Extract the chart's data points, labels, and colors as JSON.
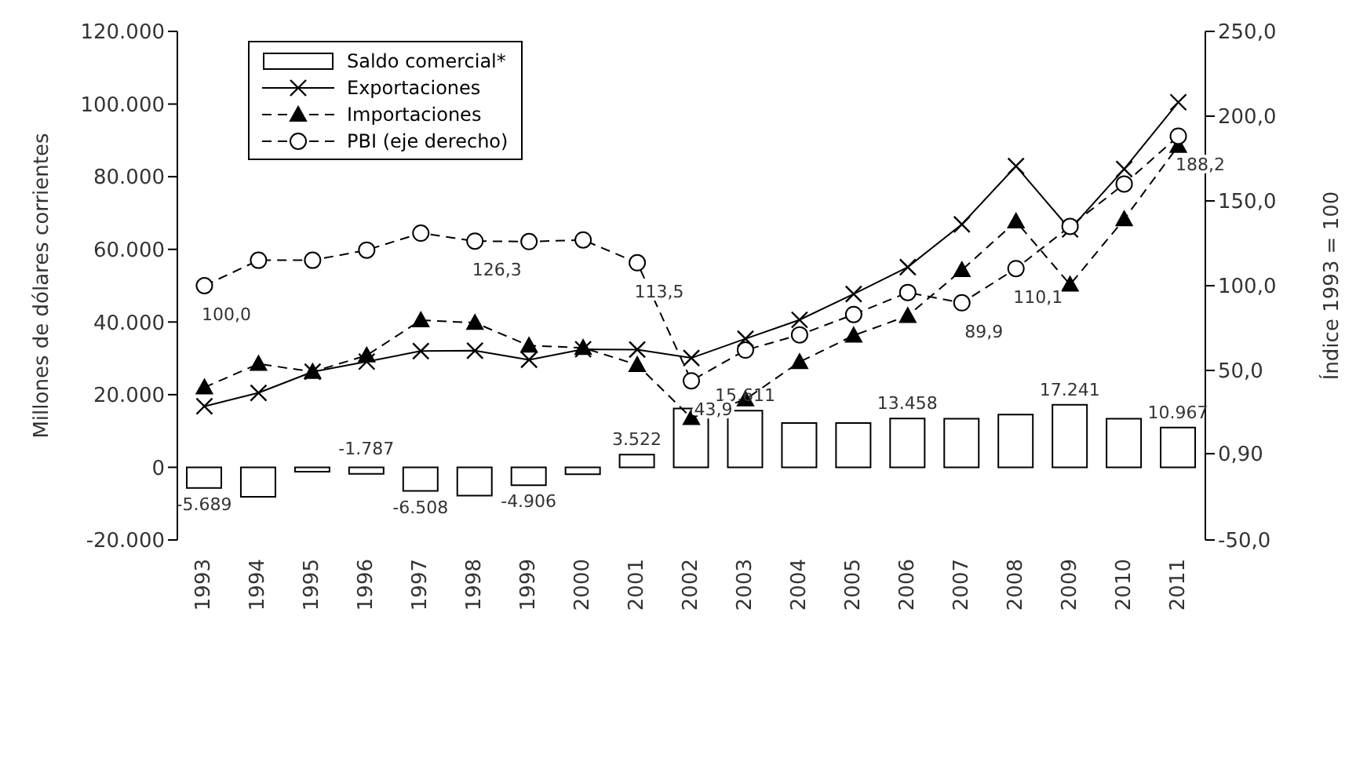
{
  "chart_data": {
    "type": "bar",
    "categories": [
      "1993",
      "1994",
      "1995",
      "1996",
      "1997",
      "1998",
      "1999",
      "2000",
      "2001",
      "2002",
      "2003",
      "2004",
      "2005",
      "2006",
      "2007",
      "2008",
      "2009",
      "2010",
      "2011"
    ],
    "ylabel": "Millones de dólares corrientes",
    "y2label": "Índice 1993 = 100",
    "ylim": [
      -20000,
      120000
    ],
    "yticks": [
      {
        "value": -20000,
        "label": "-20.000"
      },
      {
        "value": 0,
        "label": "0"
      },
      {
        "value": 20000,
        "label": "20.000"
      },
      {
        "value": 40000,
        "label": "40.000"
      },
      {
        "value": 60000,
        "label": "60.000"
      },
      {
        "value": 80000,
        "label": "80.000"
      },
      {
        "value": 100000,
        "label": "100.000"
      },
      {
        "value": 120000,
        "label": "120.000"
      }
    ],
    "y2lim": [
      -50,
      250
    ],
    "y2ticks": [
      {
        "value": -50,
        "label": "-50,0"
      },
      {
        "value": 0.9,
        "label": "0,90"
      },
      {
        "value": 50,
        "label": "50,0"
      },
      {
        "value": 100,
        "label": "100,0"
      },
      {
        "value": 150,
        "label": "150,0"
      },
      {
        "value": 200,
        "label": "200,0"
      },
      {
        "value": 250,
        "label": "250,0"
      }
    ],
    "legend": "top left",
    "series": [
      {
        "name": "Saldo comercial*",
        "color": "#ffffff",
        "values": [
          -5689,
          -8100,
          -1200,
          -1787,
          -6508,
          -7800,
          -4906,
          -1900,
          3522,
          16200,
          15611,
          12200,
          12200,
          13458,
          13400,
          14500,
          17241,
          13400,
          10967
        ],
        "value_labels": [
          "-5.689",
          null,
          null,
          "-1.787",
          "-6.508",
          null,
          "-4.906",
          null,
          "3.522",
          null,
          "15.611",
          null,
          null,
          "13.458",
          null,
          null,
          "17.241",
          null,
          "10.967"
        ]
      },
      {
        "name": "Exportaciones",
        "type": "line",
        "color": "#000000",
        "marker": "cross",
        "line_style": "solid",
        "values": [
          16800,
          20500,
          26300,
          29100,
          32000,
          32100,
          29600,
          32500,
          32400,
          30100,
          35400,
          40600,
          47700,
          55100,
          66900,
          82900,
          65500,
          82100,
          100500
        ]
      },
      {
        "name": "Importaciones",
        "type": "line",
        "color": "#000000",
        "marker": "triangle",
        "line_style": "dashed",
        "values": [
          22000,
          28500,
          26300,
          30800,
          40500,
          39800,
          33500,
          32900,
          28200,
          13600,
          18700,
          29000,
          36300,
          41700,
          54300,
          67700,
          50300,
          68300,
          88500
        ]
      },
      {
        "name": "PBI (eje derecho)",
        "type": "line",
        "axis": "y2",
        "color": "#000000",
        "marker": "circle",
        "line_style": "dashed",
        "values": [
          100.0,
          115,
          115,
          121,
          131,
          126.3,
          126,
          127,
          113.5,
          43.9,
          62,
          71,
          83,
          96,
          89.9,
          110.1,
          135,
          160,
          188.2
        ],
        "value_labels": [
          "100,0",
          null,
          null,
          null,
          null,
          "126,3",
          null,
          null,
          "113,5",
          "43,9",
          null,
          null,
          null,
          null,
          "89,9",
          "110,1",
          null,
          null,
          "188,2"
        ]
      }
    ]
  }
}
